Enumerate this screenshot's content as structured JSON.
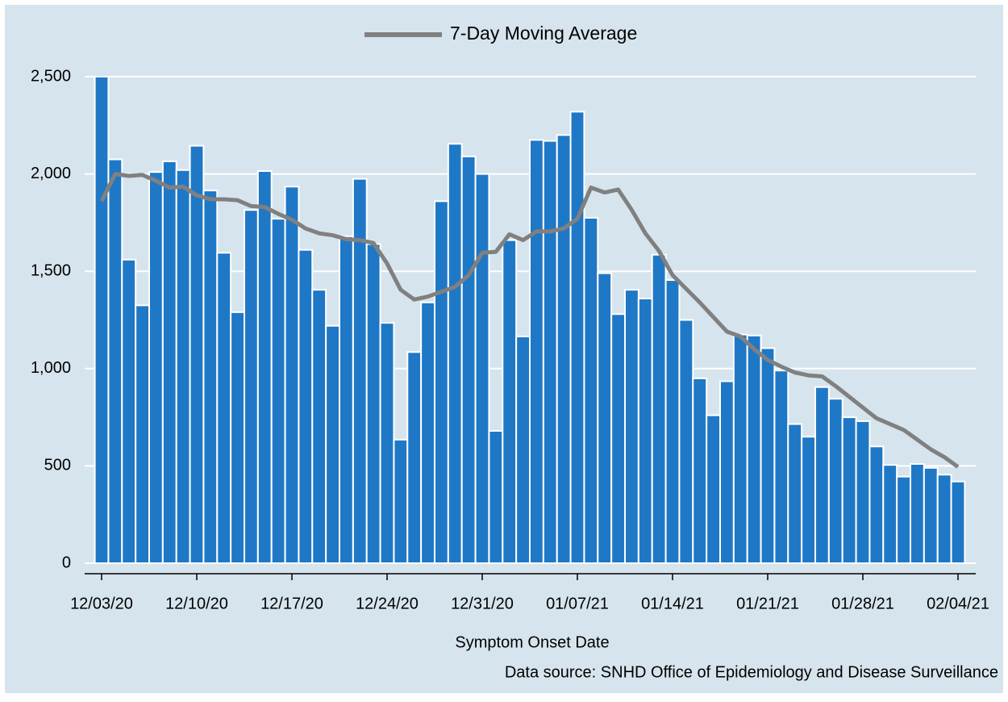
{
  "chart_data": {
    "type": "bar",
    "series": [
      {
        "name": null,
        "type": "bar",
        "color": "#1f78c6",
        "values": [
          2500,
          2075,
          1560,
          1325,
          2010,
          2065,
          2020,
          2145,
          1915,
          1595,
          1290,
          1815,
          2015,
          1770,
          1935,
          1610,
          1405,
          1220,
          1680,
          1975,
          1640,
          1235,
          635,
          1085,
          1340,
          1860,
          2155,
          2090,
          2000,
          680,
          1660,
          1165,
          2175,
          2170,
          2200,
          2320,
          1775,
          1490,
          1280,
          1405,
          1360,
          1585,
          1455,
          1250,
          950,
          760,
          935,
          1175,
          1170,
          1105,
          990,
          715,
          650,
          905,
          845,
          750,
          730,
          600,
          505,
          445,
          510,
          490,
          455,
          420
        ]
      },
      {
        "name": "7-Day Moving Average",
        "type": "line",
        "color": "#808080",
        "values": [
          1860,
          2000,
          1990,
          1995,
          1965,
          1930,
          1935,
          1890,
          1870,
          1870,
          1865,
          1835,
          1830,
          1795,
          1765,
          1720,
          1695,
          1685,
          1665,
          1660,
          1645,
          1540,
          1405,
          1355,
          1370,
          1395,
          1420,
          1480,
          1595,
          1600,
          1690,
          1660,
          1705,
          1705,
          1720,
          1770,
          1930,
          1905,
          1920,
          1815,
          1695,
          1605,
          1480,
          1410,
          1340,
          1265,
          1190,
          1165,
          1100,
          1045,
          1010,
          980,
          965,
          960,
          910,
          855,
          800,
          745,
          715,
          685,
          635,
          585,
          545,
          495
        ]
      }
    ],
    "categories": [
      "12/03/20",
      null,
      null,
      null,
      null,
      null,
      null,
      "12/10/20",
      null,
      null,
      null,
      null,
      null,
      null,
      "12/17/20",
      null,
      null,
      null,
      null,
      null,
      null,
      "12/24/20",
      null,
      null,
      null,
      null,
      null,
      null,
      "12/31/20",
      null,
      null,
      null,
      null,
      null,
      null,
      "01/07/21",
      null,
      null,
      null,
      null,
      null,
      null,
      "01/14/21",
      null,
      null,
      null,
      null,
      null,
      null,
      "01/21/21",
      null,
      null,
      null,
      null,
      null,
      null,
      "01/28/21",
      null,
      null,
      null,
      null,
      null,
      null,
      "02/04/21"
    ],
    "ylim": [
      0,
      2500
    ],
    "yticks": [
      0,
      {
        "value": 500,
        "label": "500"
      },
      {
        "value": 1000,
        "label": "1,000"
      },
      {
        "value": 1500,
        "label": "1,500"
      },
      {
        "value": 2000,
        "label": "2,000"
      },
      {
        "value": 2500,
        "label": "2,500"
      }
    ],
    "grid": true,
    "x_label": "Symptom Onset Date",
    "source": "Data source: SNHD Office of Epidemiology and Disease Surveillance",
    "legend_position": "top"
  }
}
